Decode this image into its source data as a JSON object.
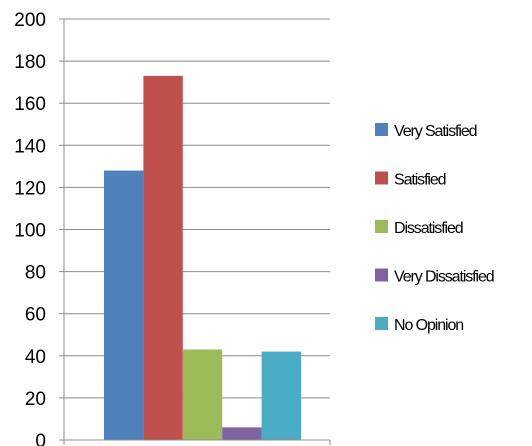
{
  "chart_data": {
    "type": "bar",
    "title": "",
    "xlabel": "",
    "ylabel": "",
    "ylim": [
      0,
      200
    ],
    "ytick_step": 20,
    "yticks": [
      "0",
      "20",
      "40",
      "60",
      "80",
      "100",
      "120",
      "140",
      "160",
      "180",
      "200"
    ],
    "grid": true,
    "legend_position": "right",
    "series": [
      {
        "name": "Very Satisfied",
        "value": 128,
        "color": "#4f81bd"
      },
      {
        "name": "Satisfied",
        "value": 173,
        "color": "#c0504d"
      },
      {
        "name": "Dissatisfied",
        "value": 43,
        "color": "#9bbb59"
      },
      {
        "name": "Very Dissatisfied",
        "value": 6,
        "color": "#8064a2"
      },
      {
        "name": "No Opinion",
        "value": 42,
        "color": "#4bacc6"
      }
    ]
  }
}
